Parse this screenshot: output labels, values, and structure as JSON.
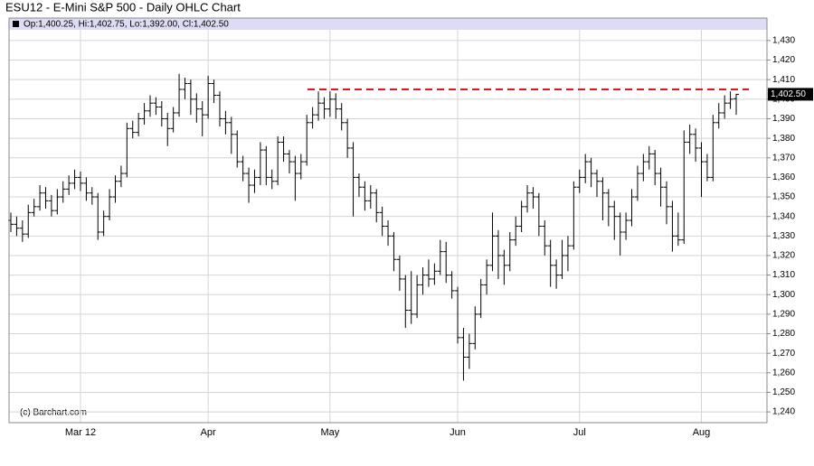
{
  "chart_data": {
    "type": "ohlc",
    "title": "ESU12 - E-Mini S&P 500 - Daily OHLC Chart",
    "info": "Op:1,400.25, Hi:1,402.75, Lo:1,392.00, Cl:1,402.50",
    "watermark": "(c) Barchart.com",
    "color": "#000000",
    "grid": true,
    "categories": [
      null,
      null,
      null,
      null,
      null,
      null,
      null,
      null,
      null,
      null,
      null,
      null,
      "Mar 12",
      null,
      null,
      null,
      null,
      null,
      null,
      null,
      null,
      null,
      null,
      null,
      null,
      null,
      null,
      null,
      null,
      null,
      null,
      null,
      null,
      null,
      "Apr",
      null,
      null,
      null,
      null,
      null,
      null,
      null,
      null,
      null,
      null,
      null,
      null,
      null,
      null,
      null,
      null,
      null,
      null,
      null,
      null,
      "May",
      null,
      null,
      null,
      null,
      null,
      null,
      null,
      null,
      null,
      null,
      null,
      null,
      null,
      null,
      null,
      null,
      null,
      null,
      null,
      null,
      null,
      "Jun",
      null,
      null,
      null,
      null,
      null,
      null,
      null,
      null,
      null,
      null,
      null,
      null,
      null,
      null,
      null,
      null,
      null,
      null,
      null,
      null,
      "Jul",
      null,
      null,
      null,
      null,
      null,
      null,
      null,
      null,
      null,
      null,
      null,
      null,
      null,
      null,
      null,
      null,
      null,
      null,
      null,
      null,
      "Aug",
      null,
      null,
      null,
      null,
      null,
      null
    ],
    "open": [
      1338,
      1336,
      1334,
      1331,
      1342,
      1345,
      1352,
      1348,
      1343,
      1350,
      1354,
      1357,
      1360,
      1357,
      1352,
      1350,
      1332,
      1340,
      1350,
      1358,
      1362,
      1385,
      1383,
      1390,
      1394,
      1398,
      1396,
      1390,
      1385,
      1393,
      1405,
      1408,
      1400,
      1395,
      1392,
      1408,
      1402,
      1390,
      1388,
      1382,
      1368,
      1362,
      1356,
      1360,
      1374,
      1360,
      1358,
      1378,
      1372,
      1368,
      1362,
      1368,
      1388,
      1392,
      1398,
      1395,
      1400,
      1395,
      1388,
      1375,
      1360,
      1355,
      1348,
      1352,
      1342,
      1335,
      1330,
      1318,
      1308,
      1292,
      1290,
      1305,
      1310,
      1308,
      1312,
      1322,
      1310,
      1302,
      1278,
      1268,
      1275,
      1290,
      1305,
      1315,
      1330,
      1320,
      1315,
      1328,
      1335,
      1345,
      1352,
      1350,
      1335,
      1325,
      1315,
      1310,
      1320,
      1325,
      1355,
      1360,
      1368,
      1362,
      1358,
      1352,
      1345,
      1340,
      1332,
      1338,
      1350,
      1362,
      1368,
      1372,
      1362,
      1355,
      1345,
      1330,
      1328,
      1378,
      1382,
      1375,
      1368,
      1360,
      1388,
      1393,
      1398,
      1400.25
    ],
    "high": [
      1342,
      1340,
      1338,
      1346,
      1349,
      1356,
      1355,
      1351,
      1354,
      1358,
      1361,
      1364,
      1363,
      1360,
      1355,
      1352,
      1343,
      1354,
      1361,
      1366,
      1388,
      1389,
      1393,
      1398,
      1402,
      1401,
      1399,
      1393,
      1396,
      1413,
      1411,
      1410,
      1403,
      1399,
      1412,
      1410,
      1404,
      1394,
      1391,
      1384,
      1371,
      1365,
      1364,
      1378,
      1376,
      1364,
      1381,
      1381,
      1374,
      1371,
      1372,
      1392,
      1396,
      1404,
      1401,
      1404,
      1403,
      1398,
      1390,
      1378,
      1362,
      1358,
      1356,
      1354,
      1345,
      1338,
      1332,
      1320,
      1310,
      1312,
      1310,
      1314,
      1318,
      1316,
      1328,
      1327,
      1312,
      1304,
      1283,
      1280,
      1294,
      1308,
      1318,
      1342,
      1333,
      1323,
      1332,
      1340,
      1348,
      1356,
      1355,
      1352,
      1338,
      1328,
      1318,
      1328,
      1330,
      1358,
      1364,
      1372,
      1370,
      1364,
      1360,
      1354,
      1348,
      1342,
      1342,
      1354,
      1366,
      1372,
      1376,
      1374,
      1365,
      1358,
      1348,
      1342,
      1384,
      1387,
      1385,
      1378,
      1372,
      1392,
      1398,
      1402,
      1404,
      1402.75
    ],
    "low": [
      1332,
      1330,
      1327,
      1329,
      1340,
      1343,
      1344,
      1340,
      1341,
      1347,
      1351,
      1354,
      1353,
      1348,
      1346,
      1328,
      1330,
      1338,
      1347,
      1355,
      1360,
      1380,
      1381,
      1387,
      1391,
      1392,
      1386,
      1376,
      1383,
      1391,
      1400,
      1392,
      1388,
      1381,
      1390,
      1398,
      1386,
      1382,
      1372,
      1365,
      1358,
      1347,
      1352,
      1356,
      1356,
      1354,
      1356,
      1368,
      1362,
      1348,
      1359,
      1366,
      1385,
      1389,
      1390,
      1391,
      1390,
      1384,
      1370,
      1340,
      1350,
      1343,
      1344,
      1337,
      1330,
      1325,
      1312,
      1302,
      1283,
      1285,
      1288,
      1300,
      1304,
      1305,
      1310,
      1306,
      1298,
      1275,
      1256,
      1262,
      1272,
      1288,
      1300,
      1312,
      1308,
      1305,
      1312,
      1325,
      1332,
      1342,
      1344,
      1330,
      1320,
      1304,
      1303,
      1308,
      1312,
      1323,
      1352,
      1357,
      1355,
      1350,
      1338,
      1335,
      1328,
      1320,
      1328,
      1335,
      1348,
      1358,
      1364,
      1356,
      1345,
      1336,
      1322,
      1325,
      1326,
      1372,
      1368,
      1350,
      1358,
      1358,
      1385,
      1390,
      1395,
      1392
    ],
    "close": [
      1336,
      1334,
      1331,
      1342,
      1345,
      1352,
      1348,
      1343,
      1350,
      1354,
      1357,
      1360,
      1357,
      1352,
      1350,
      1332,
      1340,
      1350,
      1358,
      1362,
      1385,
      1383,
      1390,
      1394,
      1398,
      1396,
      1390,
      1385,
      1393,
      1405,
      1408,
      1400,
      1395,
      1392,
      1408,
      1402,
      1390,
      1388,
      1382,
      1368,
      1362,
      1356,
      1360,
      1374,
      1360,
      1358,
      1378,
      1372,
      1368,
      1362,
      1368,
      1388,
      1392,
      1398,
      1395,
      1400,
      1395,
      1388,
      1375,
      1360,
      1355,
      1348,
      1352,
      1342,
      1335,
      1330,
      1318,
      1308,
      1292,
      1290,
      1305,
      1310,
      1308,
      1312,
      1322,
      1310,
      1302,
      1278,
      1268,
      1275,
      1290,
      1305,
      1315,
      1330,
      1320,
      1315,
      1328,
      1335,
      1345,
      1352,
      1350,
      1335,
      1325,
      1315,
      1310,
      1320,
      1325,
      1355,
      1360,
      1368,
      1362,
      1358,
      1352,
      1345,
      1340,
      1332,
      1338,
      1350,
      1362,
      1368,
      1372,
      1362,
      1355,
      1345,
      1330,
      1328,
      1378,
      1382,
      1375,
      1368,
      1360,
      1388,
      1393,
      1398,
      1400,
      1402.5
    ],
    "last_label": {
      "value": 1402.5,
      "label": "1,402.50"
    },
    "hline": {
      "value": 1405,
      "color": "#e8141c"
    },
    "ylim": [
      1234.5,
      1435.5
    ],
    "yticks": [
      {
        "value": 1240,
        "label": "1,240"
      },
      {
        "value": 1250,
        "label": "1,250"
      },
      {
        "value": 1260,
        "label": "1,260"
      },
      {
        "value": 1270,
        "label": "1,270"
      },
      {
        "value": 1280,
        "label": "1,280"
      },
      {
        "value": 1290,
        "label": "1,290"
      },
      {
        "value": 1300,
        "label": "1,300"
      },
      {
        "value": 1310,
        "label": "1,310"
      },
      {
        "value": 1320,
        "label": "1,320"
      },
      {
        "value": 1330,
        "label": "1,330"
      },
      {
        "value": 1340,
        "label": "1,340"
      },
      {
        "value": 1350,
        "label": "1,350"
      },
      {
        "value": 1360,
        "label": "1,360"
      },
      {
        "value": 1370,
        "label": "1,370"
      },
      {
        "value": 1380,
        "label": "1,380"
      },
      {
        "value": 1390,
        "label": "1,390"
      },
      {
        "value": 1400,
        "label": "1,400"
      },
      {
        "value": 1410,
        "label": "1,410"
      },
      {
        "value": 1420,
        "label": "1,420"
      },
      {
        "value": 1430,
        "label": "1,430"
      }
    ]
  }
}
